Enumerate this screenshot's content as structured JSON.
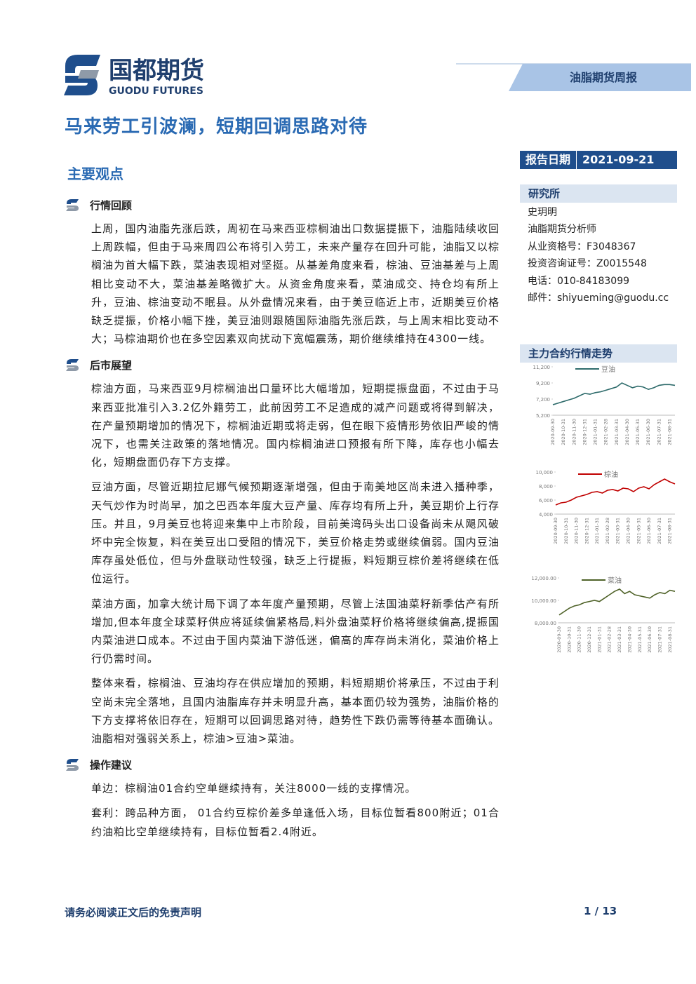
{
  "header": {
    "logo_cn": "国都期货",
    "logo_en": "GUODU FUTURES",
    "report_type": "油脂期货周报"
  },
  "title": "马来劳工引波澜，短期回调思路对待",
  "report_date": {
    "label": "报告日期",
    "value": "2021-09-21"
  },
  "sidebar": {
    "department": "研究所",
    "lines": [
      "史玥明",
      "油脂期货分析师",
      "从业资格号：F3048367",
      "投资咨询证号：Z0015548",
      "电话：010-84183099",
      "邮件：shiyueming@guodu.cc"
    ],
    "chart_section_title": "主力合约行情走势"
  },
  "main": {
    "heading": "主要观点",
    "sections": [
      {
        "heading": "行情回顾",
        "paragraphs": [
          "上周，国内油脂先涨后跌，周初在马来西亚棕榈油出口数据提振下，油脂陆续收回上周跌幅，但由于马来周四公布将引入劳工，未来产量存在回升可能，油脂又以棕榈油为首大幅下跌，菜油表现相对坚挺。从基差角度来看，棕油、豆油基差与上周相比变动不大，菜油基差略微扩大。从资金角度来看，菜油成交、持仓均有所上升，豆油、棕油变动不眠县。从外盘情况来看，由于美豆临近上市，近期美豆价格缺乏提振，价格小幅下挫，美豆油则跟随国际油脂先涨后跌，与上周末相比变动不大；马棕油期价也在多空因素双向扰动下宽幅震荡，期价继续维持在4300一线。"
        ]
      },
      {
        "heading": "后市展望",
        "paragraphs": [
          "棕油方面，马来西亚9月棕榈油出口量环比大幅增加，短期提振盘面，不过由于马来西亚批准引入3.2亿外籍劳工，此前因劳工不足造成的减产问题或将得到解决，在产量预期增加的情况下，棕榈油近期或将走弱，但在眼下疫情形势依旧严峻的情况下，也需关注政策的落地情况。国内棕榈油进口预报有所下降，库存也小幅去化，短期盘面仍存下方支撑。",
          "豆油方面，尽管近期拉尼娜气候预期逐渐增强，但由于南美地区尚未进入播种季，天气炒作为时尚早，加之巴西本年度大豆产量、库存均有所上升，美豆期价上行存压。并且，9月美豆也将迎来集中上市阶段，目前美湾码头出口设备尚未从飓风破坏中完全恢复，料在美豆出口受阻的情况下，美豆价格走势或继续偏弱。国内豆油库存虽处低位，但与外盘联动性较强，缺乏上行提振，料短期豆棕价差将继续在低位运行。",
          "菜油方面，加拿大统计局下调了本年度产量预期，尽管上法国油菜籽新季估产有所增加,但本年度全球菜籽供应将延续偏紧格局,料外盘油菜籽价格将继续偏高,提振国内菜油进口成本。不过由于国内菜油下游低迷，偏高的库存尚未消化，菜油价格上行仍需时间。",
          "整体来看，棕榈油、豆油均存在供应增加的预期，料短期期价将承压，不过由于利空尚未完全落地，且国内油脂库存并未明显升高，基本面仍较为强势，油脂价格的下方支撑将依旧存在，短期可以回调思路对待，趋势性下跌仍需等待基本面确认。油脂相对强弱关系上，棕油>豆油>菜油。"
        ]
      },
      {
        "heading": "操作建议",
        "paragraphs": [
          "单边：棕榈油01合约空单继续持有，关注8000一线的支撑情况。",
          "套利：跨品种方面， 01合约豆棕价差多单逢低入场，目标位暂看800附近；01合约油粕比空单继续持有，目标位暂看2.4附近。"
        ]
      }
    ]
  },
  "chart_data": [
    {
      "type": "line",
      "categories": [
        "2020-09-30",
        null,
        "2020-10-31",
        null,
        "2020-11-30",
        null,
        "2020-12-31",
        null,
        "2021-01-31",
        null,
        "2021-02-28",
        null,
        "2021-03-31",
        null,
        "2021-04-30",
        null,
        "2021-05-31",
        null,
        "2021-06-30",
        null,
        "2021-07-31",
        null,
        "2021-08-31",
        null
      ],
      "series": [
        {
          "name": "豆油",
          "color": "#2e6b6b",
          "values": [
            6500,
            6700,
            6900,
            7100,
            7300,
            7600,
            7900,
            7800,
            8000,
            8100,
            8300,
            8500,
            8700,
            9200,
            8900,
            8600,
            8800,
            8700,
            8400,
            8600,
            8900,
            9000,
            9000,
            8900
          ]
        }
      ],
      "ylim": [
        5200,
        11200
      ],
      "yticks": [
        {
          "value": 5200,
          "label": "5,200"
        },
        {
          "value": 7200,
          "label": "7,200"
        },
        {
          "value": 9200,
          "label": "9,200"
        },
        {
          "value": 11200,
          "label": "11,200"
        }
      ]
    },
    {
      "type": "line",
      "categories": [
        "2020-09-30",
        null,
        "2020-10-31",
        null,
        "2020-11-30",
        null,
        "2020-12-31",
        null,
        "2021-01-31",
        null,
        "2021-02-28",
        null,
        "2021-03-31",
        null,
        "2021-04-30",
        null,
        "2021-05-31",
        null,
        "2021-06-30",
        null,
        "2021-07-31",
        null,
        "2021-08-31",
        null
      ],
      "series": [
        {
          "name": "棕油",
          "color": "#c00000",
          "values": [
            5300,
            5600,
            5700,
            6000,
            6400,
            6600,
            6800,
            7100,
            7200,
            7000,
            7400,
            7500,
            7300,
            7700,
            7600,
            7200,
            7700,
            7900,
            7600,
            8200,
            8600,
            9000,
            8600,
            8300
          ]
        }
      ],
      "ylim": [
        4000,
        10000
      ],
      "yticks": [
        {
          "value": 4000,
          "label": "4,000"
        },
        {
          "value": 6000,
          "label": "6,000"
        },
        {
          "value": 8000,
          "label": "8,000"
        },
        {
          "value": 10000,
          "label": "10,000"
        }
      ]
    },
    {
      "type": "line",
      "categories": [
        "2020-09-30",
        null,
        "2020-10-31",
        null,
        "2020-11-30",
        null,
        "2020-12-31",
        null,
        "2021-01-31",
        null,
        "2021-02-28",
        null,
        "2021-03-31",
        null,
        "2021-04-30",
        null,
        "2021-05-31",
        null,
        "2021-06-30",
        null,
        "2021-07-31",
        null,
        "2021-08-31",
        null
      ],
      "series": [
        {
          "name": "菜油",
          "color": "#4f6228",
          "values": [
            8700,
            9000,
            9300,
            9500,
            9600,
            9800,
            9900,
            10000,
            9900,
            10200,
            10500,
            10800,
            11000,
            10600,
            10800,
            10500,
            10400,
            10300,
            10200,
            10500,
            10700,
            10600,
            10900,
            10800
          ]
        }
      ],
      "ylim": [
        8000,
        12000
      ],
      "yticks": [
        {
          "value": 8000,
          "label": "8,000.00"
        },
        {
          "value": 10000,
          "label": "10,000.00"
        },
        {
          "value": 12000,
          "label": "12,000.00"
        }
      ]
    }
  ],
  "footer": {
    "disclaimer": "请务必阅读正文后的免责声明",
    "page": "1 / 13"
  }
}
